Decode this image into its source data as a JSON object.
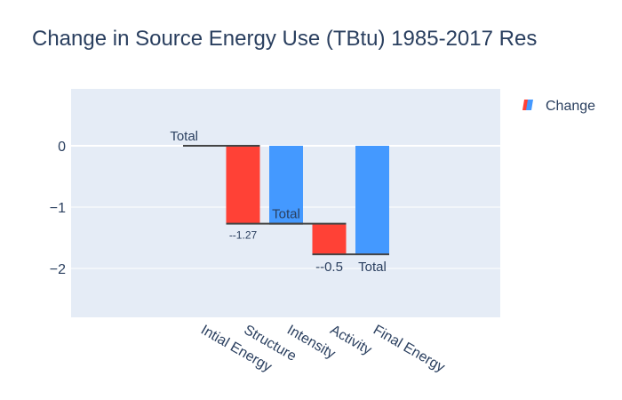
{
  "chart_data": {
    "type": "waterfall",
    "title": "Change in Source Energy Use (TBtu) 1985-2017 Res",
    "categories": [
      "Intial Energy",
      "Structure",
      "Intensity",
      "Activity",
      "Final Energy"
    ],
    "measures": [
      "total",
      "relative",
      "total",
      "relative",
      "total"
    ],
    "values": [
      0,
      -1.27,
      -1.27,
      -0.5,
      -1.77
    ],
    "text_labels": [
      "Total",
      "--1.27",
      "Total",
      "--0.5",
      "Total"
    ],
    "y_ticks": [
      0,
      -1,
      -2
    ],
    "y_tick_labels": [
      "0",
      "−1",
      "−2"
    ],
    "ylim": [
      -2.8,
      0.95
    ],
    "legend": {
      "entries": [
        "Change"
      ],
      "position": "top-right"
    },
    "colors": {
      "decreasing": "#ff4136",
      "total": "#4499ff",
      "connector": "#444444",
      "plot_bg": "#e5ecf6"
    }
  }
}
